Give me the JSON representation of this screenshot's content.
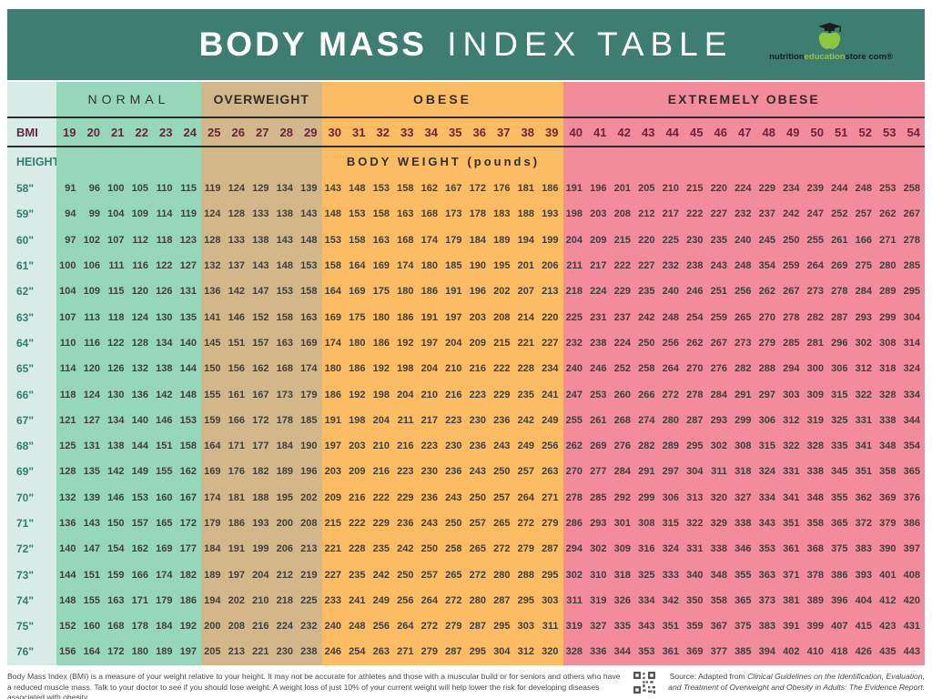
{
  "header": {
    "title_bold": "BODY MASS",
    "title_light": "INDEX TABLE",
    "logo_part1": "nutrition",
    "logo_part2": "education",
    "logo_part3": "store com",
    "logo_reg": "®"
  },
  "colors": {
    "header_bg": "#3e7d72",
    "label_col": "#d7ebe7",
    "normal": "#97d7b9",
    "overweight": "#d3b78a",
    "obese": "#fbbc64",
    "extremely_obese": "#f28b9c",
    "bmi_text": "#6e2240",
    "height_text": "#2e7f70",
    "rule": "#2c2c2c",
    "logo_green": "#8dc63f"
  },
  "categories": [
    {
      "label": "NORMAL",
      "span": 6,
      "key": "normal",
      "class": "norm"
    },
    {
      "label": "OVERWEIGHT",
      "span": 5,
      "key": "overweight",
      "class": "ow"
    },
    {
      "label": "OBESE",
      "span": 10,
      "key": "obese",
      "class": "ob"
    },
    {
      "label": "EXTREMELY OBESE",
      "span": 15,
      "key": "extremely_obese",
      "class": "ext"
    }
  ],
  "bmi_label": "BMI",
  "height_label": "HEIGHT",
  "body_weight_label": "BODY WEIGHT (pounds)",
  "bmi_values": [
    19,
    20,
    21,
    22,
    23,
    24,
    25,
    26,
    27,
    28,
    29,
    30,
    31,
    32,
    33,
    34,
    35,
    36,
    37,
    38,
    39,
    40,
    41,
    42,
    43,
    44,
    45,
    46,
    47,
    48,
    49,
    50,
    51,
    52,
    53,
    54
  ],
  "chart_data": {
    "type": "table",
    "title": "BODY MASS INDEX TABLE",
    "columns_bmi": [
      19,
      20,
      21,
      22,
      23,
      24,
      25,
      26,
      27,
      28,
      29,
      30,
      31,
      32,
      33,
      34,
      35,
      36,
      37,
      38,
      39,
      40,
      41,
      42,
      43,
      44,
      45,
      46,
      47,
      48,
      49,
      50,
      51,
      52,
      53,
      54
    ],
    "rows_height_inches": [
      "58\"",
      "59\"",
      "60\"",
      "61\"",
      "62\"",
      "63\"",
      "64\"",
      "65\"",
      "66\"",
      "67\"",
      "68\"",
      "69\"",
      "70\"",
      "71\"",
      "72\"",
      "73\"",
      "74\"",
      "75\"",
      "76\""
    ]
  },
  "rows": [
    {
      "height": "58\"",
      "values": [
        91,
        96,
        100,
        105,
        110,
        115,
        119,
        124,
        129,
        134,
        139,
        143,
        148,
        153,
        158,
        162,
        167,
        172,
        176,
        181,
        186,
        191,
        196,
        201,
        205,
        210,
        215,
        220,
        224,
        229,
        234,
        239,
        244,
        248,
        253,
        258
      ]
    },
    {
      "height": "59\"",
      "values": [
        94,
        99,
        104,
        109,
        114,
        119,
        124,
        128,
        133,
        138,
        143,
        148,
        153,
        158,
        163,
        168,
        173,
        178,
        183,
        188,
        193,
        198,
        203,
        208,
        212,
        217,
        222,
        227,
        232,
        237,
        242,
        247,
        252,
        257,
        262,
        267
      ]
    },
    {
      "height": "60\"",
      "values": [
        97,
        102,
        107,
        112,
        118,
        123,
        128,
        133,
        138,
        143,
        148,
        153,
        158,
        163,
        168,
        174,
        179,
        184,
        189,
        194,
        199,
        204,
        209,
        215,
        220,
        225,
        230,
        235,
        240,
        245,
        250,
        255,
        261,
        166,
        271,
        278
      ]
    },
    {
      "height": "61\"",
      "values": [
        100,
        106,
        111,
        116,
        122,
        127,
        132,
        137,
        143,
        148,
        153,
        158,
        164,
        169,
        174,
        180,
        185,
        190,
        195,
        201,
        206,
        211,
        217,
        222,
        227,
        232,
        238,
        243,
        248,
        354,
        259,
        264,
        269,
        275,
        280,
        285
      ]
    },
    {
      "height": "62\"",
      "values": [
        104,
        109,
        115,
        120,
        126,
        131,
        136,
        142,
        147,
        153,
        158,
        164,
        169,
        175,
        180,
        186,
        191,
        196,
        202,
        207,
        213,
        218,
        224,
        229,
        235,
        240,
        246,
        251,
        256,
        262,
        267,
        273,
        278,
        284,
        289,
        295
      ]
    },
    {
      "height": "63\"",
      "values": [
        107,
        113,
        118,
        124,
        130,
        135,
        141,
        146,
        152,
        158,
        163,
        169,
        175,
        180,
        186,
        191,
        197,
        203,
        208,
        214,
        220,
        225,
        231,
        237,
        242,
        248,
        254,
        259,
        265,
        270,
        278,
        282,
        287,
        293,
        299,
        304
      ]
    },
    {
      "height": "64\"",
      "values": [
        110,
        116,
        122,
        128,
        134,
        140,
        145,
        151,
        157,
        163,
        169,
        174,
        180,
        186,
        192,
        197,
        204,
        209,
        215,
        221,
        227,
        232,
        238,
        224,
        250,
        256,
        262,
        267,
        273,
        279,
        285,
        281,
        296,
        302,
        308,
        314
      ]
    },
    {
      "height": "65\"",
      "values": [
        114,
        120,
        126,
        132,
        138,
        144,
        150,
        156,
        162,
        168,
        174,
        180,
        186,
        192,
        198,
        204,
        210,
        216,
        222,
        228,
        234,
        240,
        246,
        252,
        258,
        264,
        270,
        276,
        282,
        288,
        294,
        300,
        306,
        312,
        318,
        324
      ]
    },
    {
      "height": "66\"",
      "values": [
        118,
        124,
        130,
        136,
        142,
        148,
        155,
        161,
        167,
        173,
        179,
        186,
        192,
        198,
        204,
        210,
        216,
        223,
        229,
        235,
        241,
        247,
        253,
        260,
        266,
        272,
        278,
        284,
        291,
        297,
        303,
        309,
        315,
        322,
        328,
        334
      ]
    },
    {
      "height": "67\"",
      "values": [
        121,
        127,
        134,
        140,
        146,
        153,
        159,
        166,
        172,
        178,
        185,
        191,
        198,
        204,
        211,
        217,
        223,
        230,
        236,
        242,
        249,
        255,
        261,
        268,
        274,
        280,
        287,
        293,
        299,
        306,
        312,
        319,
        325,
        331,
        338,
        344
      ]
    },
    {
      "height": "68\"",
      "values": [
        125,
        131,
        138,
        144,
        151,
        158,
        164,
        171,
        177,
        184,
        190,
        197,
        203,
        210,
        216,
        223,
        230,
        236,
        243,
        249,
        256,
        262,
        269,
        276,
        282,
        289,
        295,
        302,
        308,
        315,
        322,
        328,
        335,
        341,
        348,
        354
      ]
    },
    {
      "height": "69\"",
      "values": [
        128,
        135,
        142,
        149,
        155,
        162,
        169,
        176,
        182,
        189,
        196,
        203,
        209,
        216,
        223,
        230,
        236,
        243,
        250,
        257,
        263,
        270,
        277,
        284,
        291,
        297,
        304,
        311,
        318,
        324,
        331,
        338,
        345,
        351,
        358,
        365
      ]
    },
    {
      "height": "70\"",
      "values": [
        132,
        139,
        146,
        153,
        160,
        167,
        174,
        181,
        188,
        195,
        202,
        209,
        216,
        222,
        229,
        236,
        243,
        250,
        257,
        264,
        271,
        278,
        285,
        292,
        299,
        306,
        313,
        320,
        327,
        334,
        341,
        348,
        355,
        362,
        369,
        376
      ]
    },
    {
      "height": "71\"",
      "values": [
        136,
        143,
        150,
        157,
        165,
        172,
        179,
        186,
        193,
        200,
        208,
        215,
        222,
        229,
        236,
        243,
        250,
        257,
        265,
        272,
        279,
        286,
        293,
        301,
        308,
        315,
        322,
        329,
        338,
        343,
        351,
        358,
        365,
        372,
        379,
        386
      ]
    },
    {
      "height": "72\"",
      "values": [
        140,
        147,
        154,
        162,
        169,
        177,
        184,
        191,
        199,
        206,
        213,
        221,
        228,
        235,
        242,
        250,
        258,
        265,
        272,
        279,
        287,
        294,
        302,
        309,
        316,
        324,
        331,
        338,
        346,
        353,
        361,
        368,
        375,
        383,
        390,
        397
      ]
    },
    {
      "height": "73\"",
      "values": [
        144,
        151,
        159,
        166,
        174,
        182,
        189,
        197,
        204,
        212,
        219,
        227,
        235,
        242,
        250,
        257,
        265,
        272,
        280,
        288,
        295,
        302,
        310,
        318,
        325,
        333,
        340,
        348,
        355,
        363,
        371,
        378,
        386,
        393,
        401,
        408
      ]
    },
    {
      "height": "74\"",
      "values": [
        148,
        155,
        163,
        171,
        179,
        186,
        194,
        202,
        210,
        218,
        225,
        233,
        241,
        249,
        256,
        264,
        272,
        280,
        287,
        295,
        303,
        311,
        319,
        326,
        334,
        342,
        350,
        358,
        365,
        373,
        381,
        389,
        396,
        404,
        412,
        420
      ]
    },
    {
      "height": "75\"",
      "values": [
        152,
        160,
        168,
        178,
        184,
        192,
        200,
        208,
        216,
        224,
        232,
        240,
        248,
        256,
        264,
        272,
        279,
        287,
        295,
        303,
        311,
        319,
        327,
        335,
        343,
        351,
        359,
        367,
        375,
        383,
        391,
        399,
        407,
        415,
        423,
        431
      ]
    },
    {
      "height": "76\"",
      "values": [
        156,
        164,
        172,
        180,
        189,
        197,
        205,
        213,
        221,
        230,
        238,
        246,
        254,
        263,
        271,
        279,
        287,
        295,
        304,
        312,
        320,
        328,
        336,
        344,
        353,
        361,
        369,
        377,
        385,
        394,
        402,
        410,
        418,
        426,
        435,
        443
      ]
    }
  ],
  "footer": {
    "disclaimer": "Body Mass Index (BMI) is a measure of your weight relative to your height. It may not be accurate for athletes and those with a muscular build or for seniors and others who have a reduced muscle mass. Talk to your doctor to see if you should lose weight. A weight loss of just 10% of your current weight will help lower the risk for developing diseases associated with obesity.",
    "source_prefix": "Source:  Adapted from ",
    "source_italic": "Clinical Guidelines on the Identification, Evaluation, and Treatment of Overweight and Obesity in Adults: The Evidence Report."
  }
}
